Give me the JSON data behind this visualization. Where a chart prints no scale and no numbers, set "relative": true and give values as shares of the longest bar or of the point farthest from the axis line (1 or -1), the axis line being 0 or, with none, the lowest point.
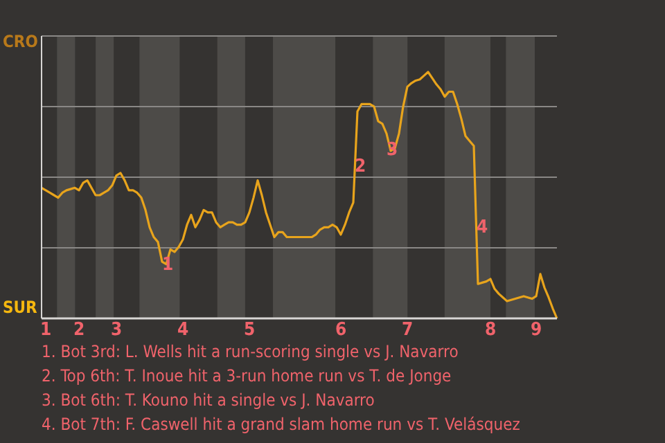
{
  "chart_data": {
    "type": "line",
    "relative": true,
    "categories": [
      null,
      "1",
      null,
      null,
      null,
      null,
      null,
      null,
      null,
      "2",
      null,
      null,
      null,
      null,
      null,
      null,
      null,
      null,
      "3",
      null,
      null,
      null,
      null,
      null,
      null,
      null,
      null,
      null,
      null,
      null,
      null,
      null,
      null,
      null,
      "4",
      null,
      null,
      null,
      null,
      null,
      null,
      null,
      null,
      null,
      null,
      null,
      null,
      null,
      null,
      null,
      "5",
      null,
      null,
      null,
      null,
      null,
      null,
      null,
      null,
      null,
      null,
      null,
      null,
      null,
      null,
      null,
      null,
      null,
      null,
      null,
      null,
      null,
      "6",
      null,
      null,
      null,
      null,
      null,
      null,
      null,
      null,
      null,
      null,
      null,
      null,
      null,
      null,
      null,
      "7",
      null,
      null,
      null,
      null,
      null,
      null,
      null,
      null,
      null,
      null,
      null,
      null,
      null,
      null,
      null,
      null,
      null,
      null,
      null,
      "8",
      null,
      null,
      null,
      null,
      null,
      null,
      null,
      null,
      null,
      null,
      "9",
      null,
      null,
      null,
      null,
      null
    ],
    "series": [
      {
        "color": "#e8a41c",
        "values": [
          0.53,
          0.52,
          0.51,
          0.5,
          0.49,
          0.51,
          0.52,
          0.525,
          0.53,
          0.52,
          0.55,
          0.56,
          0.53,
          0.5,
          0.5,
          0.51,
          0.52,
          0.54,
          0.58,
          0.59,
          0.56,
          0.52,
          0.52,
          0.51,
          0.49,
          0.44,
          0.37,
          0.33,
          0.31,
          0.23,
          0.22,
          0.28,
          0.27,
          0.29,
          0.32,
          0.38,
          0.42,
          0.37,
          0.4,
          0.44,
          0.43,
          0.43,
          0.39,
          0.37,
          0.38,
          0.39,
          0.39,
          0.38,
          0.38,
          0.39,
          0.43,
          0.49,
          0.56,
          0.5,
          0.43,
          0.38,
          0.33,
          0.35,
          0.35,
          0.33,
          0.33,
          0.33,
          0.33,
          0.33,
          0.33,
          0.33,
          0.34,
          0.36,
          0.37,
          0.37,
          0.38,
          0.37,
          0.34,
          0.38,
          0.43,
          0.47,
          0.84,
          0.87,
          0.87,
          0.87,
          0.86,
          0.8,
          0.79,
          0.75,
          0.68,
          0.69,
          0.75,
          0.86,
          0.94,
          0.955,
          0.965,
          0.97,
          0.985,
          1,
          0.975,
          0.95,
          0.93,
          0.9,
          0.92,
          0.92,
          0.87,
          0.81,
          0.74,
          0.72,
          0.7,
          0.14,
          0.145,
          0.15,
          0.16,
          0.12,
          0.1,
          0.085,
          0.07,
          0.075,
          0.08,
          0.085,
          0.09,
          0.085,
          0.08,
          0.09,
          0.18,
          0.125,
          0.085,
          0.04,
          0
        ]
      }
    ],
    "grid": "y",
    "annotations": [
      "CRO",
      "SUR",
      "1",
      "2",
      "3",
      "4",
      "1. Bot 3rd: L. Wells hit a run-scoring single vs J. Navarro",
      "2. Top 6th: T. Inoue hit a 3-run home run vs T. de Jonge",
      "3. Bot 6th: T. Kouno hit a single vs J. Navarro",
      "4. Bot 7th: F. Caswell hit a grand slam home run vs T. Velásquez"
    ]
  }
}
